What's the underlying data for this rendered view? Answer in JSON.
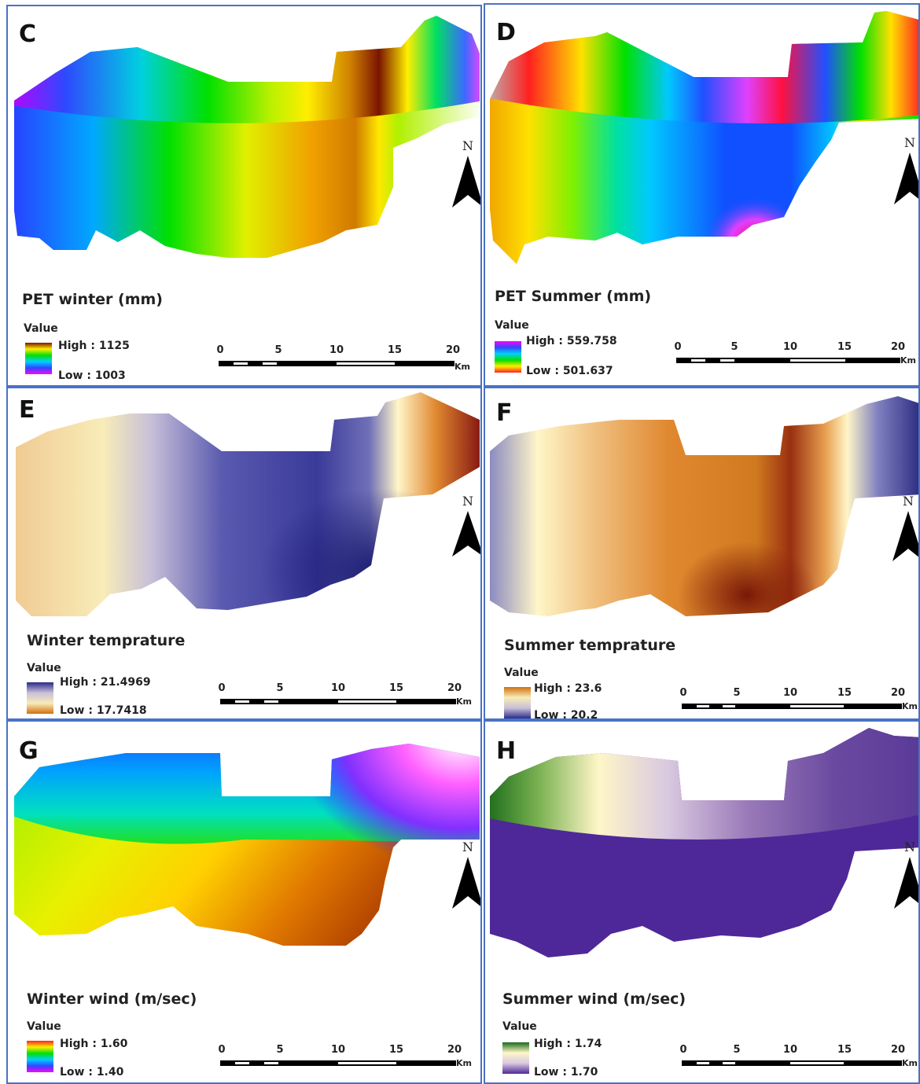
{
  "panels": [
    {
      "id": "C",
      "letter": "C",
      "title": "PET winter (mm)",
      "value_label": "Value",
      "high": "High : 1125",
      "low": "Low : 1003",
      "theme": "rainbow"
    },
    {
      "id": "D",
      "letter": "D",
      "title": "PET Summer (mm)",
      "value_label": "Value",
      "high": "High : 559.758",
      "low": "Low : 501.637",
      "theme": "rainbow-rev"
    },
    {
      "id": "E",
      "letter": "E",
      "title": "Winter temprature",
      "value_label": "Value",
      "high": "High : 21.4969",
      "low": "Low : 17.7418",
      "theme": "puor-blue"
    },
    {
      "id": "F",
      "letter": "F",
      "title": "Summer temprature",
      "value_label": "Value",
      "high": "High : 23.6",
      "low": "Low : 20.2",
      "theme": "puor-orange"
    },
    {
      "id": "G",
      "letter": "G",
      "title": "Winter wind (m/sec)",
      "value_label": "Value",
      "high": "High : 1.60",
      "low": "Low : 1.40",
      "theme": "rainbow"
    },
    {
      "id": "H",
      "letter": "H",
      "title": "Summer wind (m/sec)",
      "value_label": "Value",
      "high": "High : 1.74",
      "low": "Low : 1.70",
      "theme": "prgn"
    }
  ],
  "north_label": "N",
  "scale": {
    "ticks": [
      "0",
      "5",
      "10",
      "15",
      "20"
    ],
    "unit": "Km"
  }
}
